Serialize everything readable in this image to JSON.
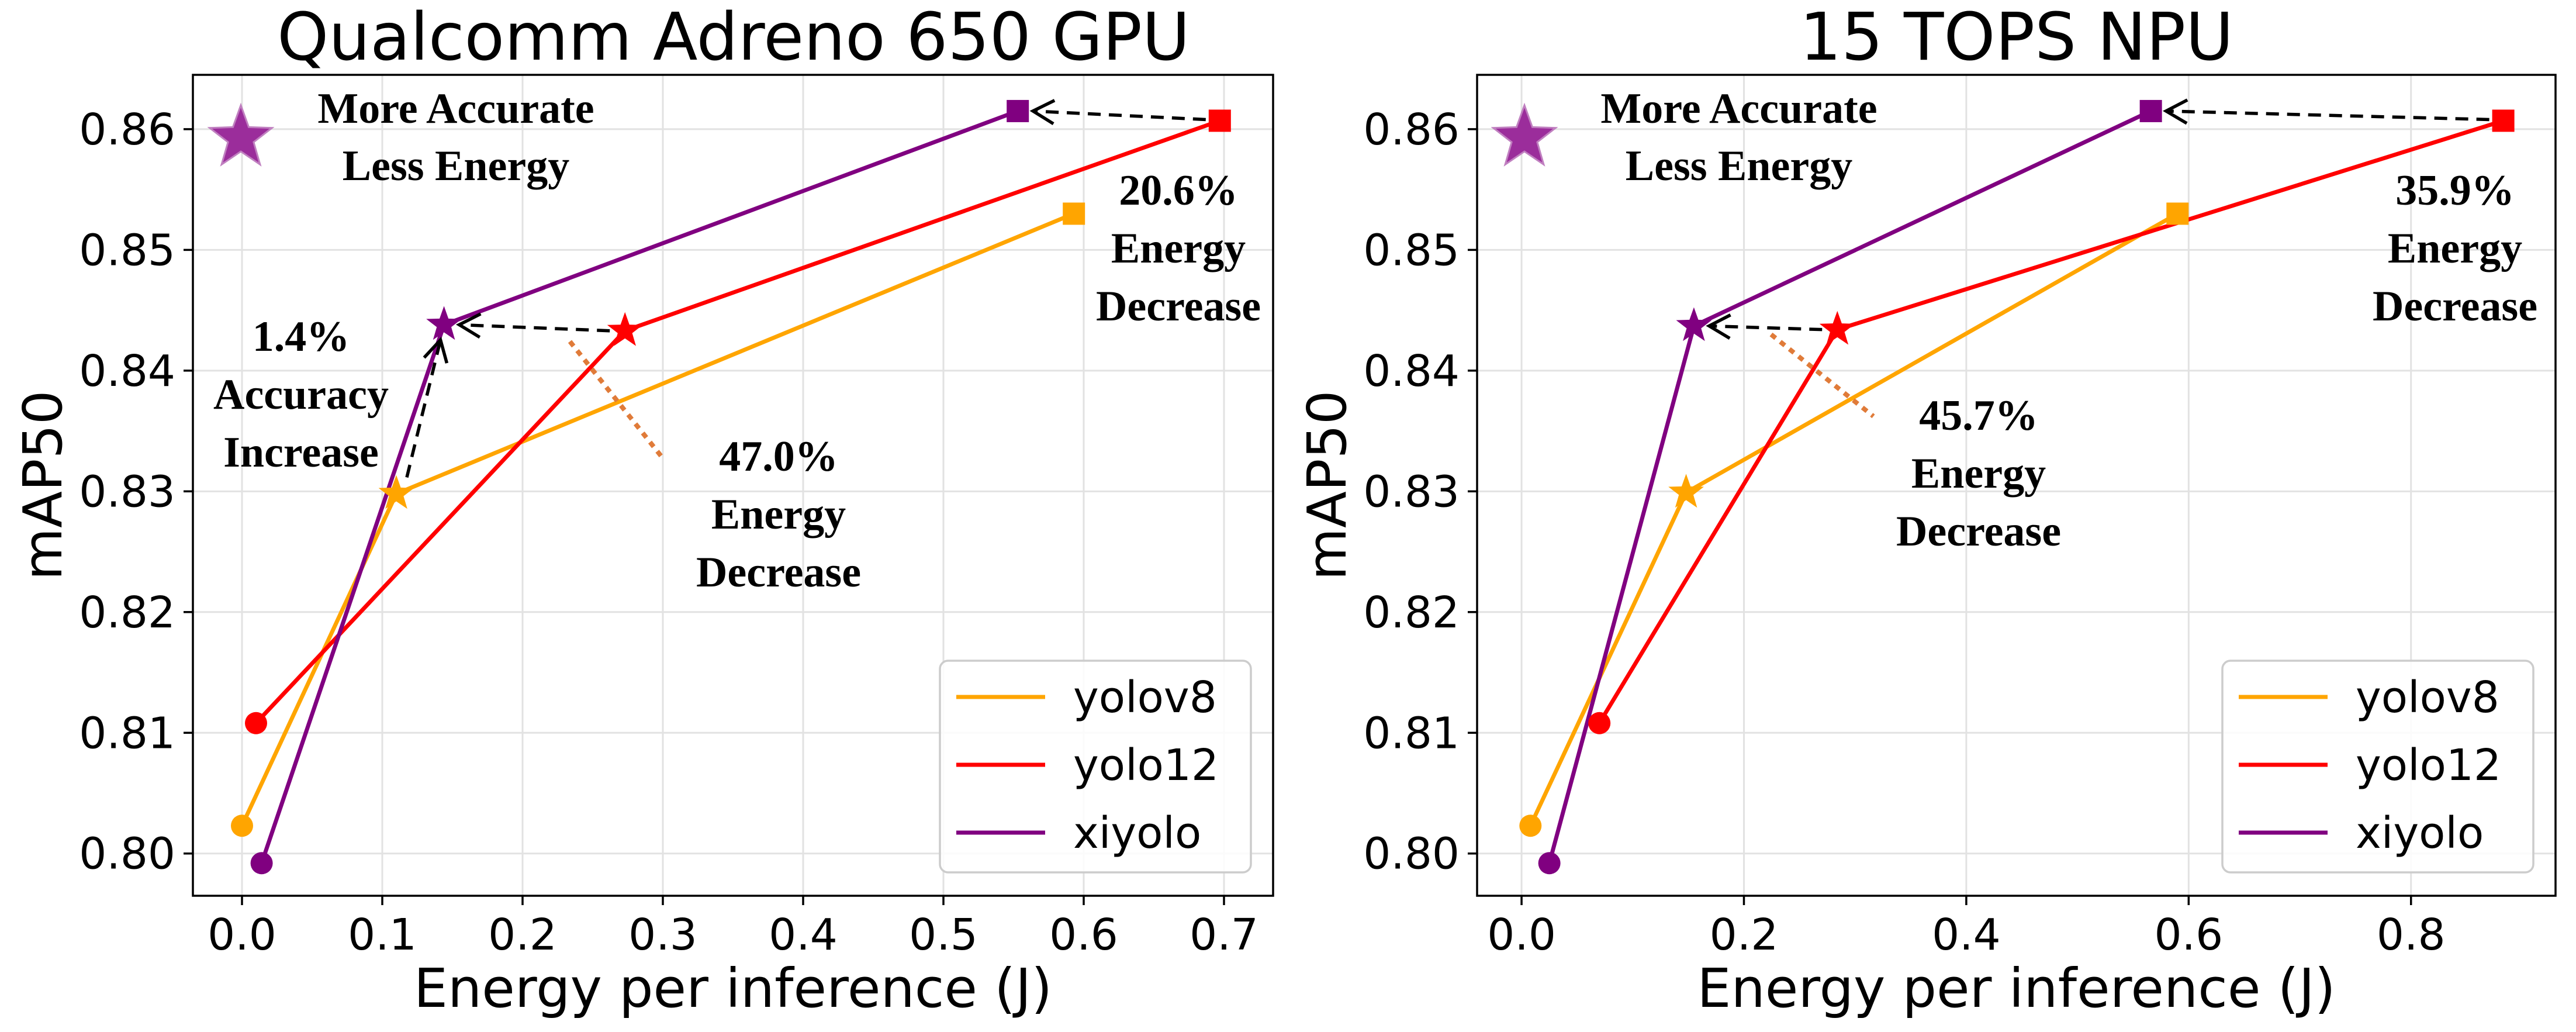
{
  "chart_data": [
    {
      "type": "line",
      "title": "Qualcomm Adreno 650 GPU",
      "xlabel": "Energy per inference (J)",
      "ylabel": "mAP50",
      "xlim": [
        -0.035,
        0.735
      ],
      "ylim": [
        0.7965,
        0.8645
      ],
      "xticks": [
        0.0,
        0.1,
        0.2,
        0.3,
        0.4,
        0.5,
        0.6,
        0.7
      ],
      "xtick_labels": [
        "0.0",
        "0.1",
        "0.2",
        "0.3",
        "0.4",
        "0.5",
        "0.6",
        "0.7"
      ],
      "yticks": [
        0.8,
        0.81,
        0.82,
        0.83,
        0.84,
        0.85,
        0.86
      ],
      "ytick_labels": [
        "0.80",
        "0.81",
        "0.82",
        "0.83",
        "0.84",
        "0.85",
        "0.86"
      ],
      "grid": true,
      "legend_position": "bottom-right",
      "series": [
        {
          "name": "yolov8",
          "color": "#FFA500",
          "x": [
            0.0,
            0.11,
            0.593
          ],
          "y": [
            0.8023,
            0.8298,
            0.853
          ],
          "markers": [
            "circle",
            "star",
            "square"
          ]
        },
        {
          "name": "yolo12",
          "color": "#FF0000",
          "x": [
            0.01,
            0.273,
            0.697
          ],
          "y": [
            0.8108,
            0.8433,
            0.8607
          ],
          "markers": [
            "circle",
            "star",
            "square"
          ]
        },
        {
          "name": "xiyolo",
          "color": "#800080",
          "x": [
            0.014,
            0.144,
            0.553
          ],
          "y": [
            0.7992,
            0.8438,
            0.8615
          ],
          "markers": [
            "circle",
            "star",
            "square"
          ]
        }
      ],
      "best_corner": {
        "label_line1": "More Accurate",
        "label_line2": "Less Energy",
        "marker_color": "#9B2D9B"
      },
      "annotations": [
        {
          "lines": [
            "20.6%",
            "Energy",
            "Decrease"
          ]
        },
        {
          "lines": [
            "47.0%",
            "Energy",
            "Decrease"
          ]
        },
        {
          "lines": [
            "1.4%",
            "Accuracy",
            "Increase"
          ]
        }
      ]
    },
    {
      "type": "line",
      "title": "15 TOPS NPU",
      "xlabel": "Energy per inference (J)",
      "ylabel": "mAP50",
      "xlim": [
        -0.04,
        0.93
      ],
      "ylim": [
        0.7965,
        0.8645
      ],
      "xticks": [
        0.0,
        0.2,
        0.4,
        0.6,
        0.8
      ],
      "xtick_labels": [
        "0.0",
        "0.2",
        "0.4",
        "0.6",
        "0.8"
      ],
      "yticks": [
        0.8,
        0.81,
        0.82,
        0.83,
        0.84,
        0.85,
        0.86
      ],
      "ytick_labels": [
        "0.80",
        "0.81",
        "0.82",
        "0.83",
        "0.84",
        "0.85",
        "0.86"
      ],
      "grid": true,
      "legend_position": "bottom-right",
      "series": [
        {
          "name": "yolov8",
          "color": "#FFA500",
          "x": [
            0.008,
            0.148,
            0.59
          ],
          "y": [
            0.8023,
            0.8299,
            0.853
          ],
          "markers": [
            "circle",
            "star",
            "square"
          ]
        },
        {
          "name": "yolo12",
          "color": "#FF0000",
          "x": [
            0.07,
            0.284,
            0.883
          ],
          "y": [
            0.8108,
            0.8434,
            0.8607
          ],
          "markers": [
            "circle",
            "star",
            "square"
          ]
        },
        {
          "name": "xiyolo",
          "color": "#800080",
          "x": [
            0.025,
            0.155,
            0.566
          ],
          "y": [
            0.7992,
            0.8437,
            0.8615
          ],
          "markers": [
            "circle",
            "star",
            "square"
          ]
        }
      ],
      "best_corner": {
        "label_line1": "More Accurate",
        "label_line2": "Less Energy",
        "marker_color": "#9B2D9B"
      },
      "annotations": [
        {
          "lines": [
            "35.9%",
            "Energy",
            "Decrease"
          ]
        },
        {
          "lines": [
            "45.7%",
            "Energy",
            "Decrease"
          ]
        }
      ]
    }
  ]
}
